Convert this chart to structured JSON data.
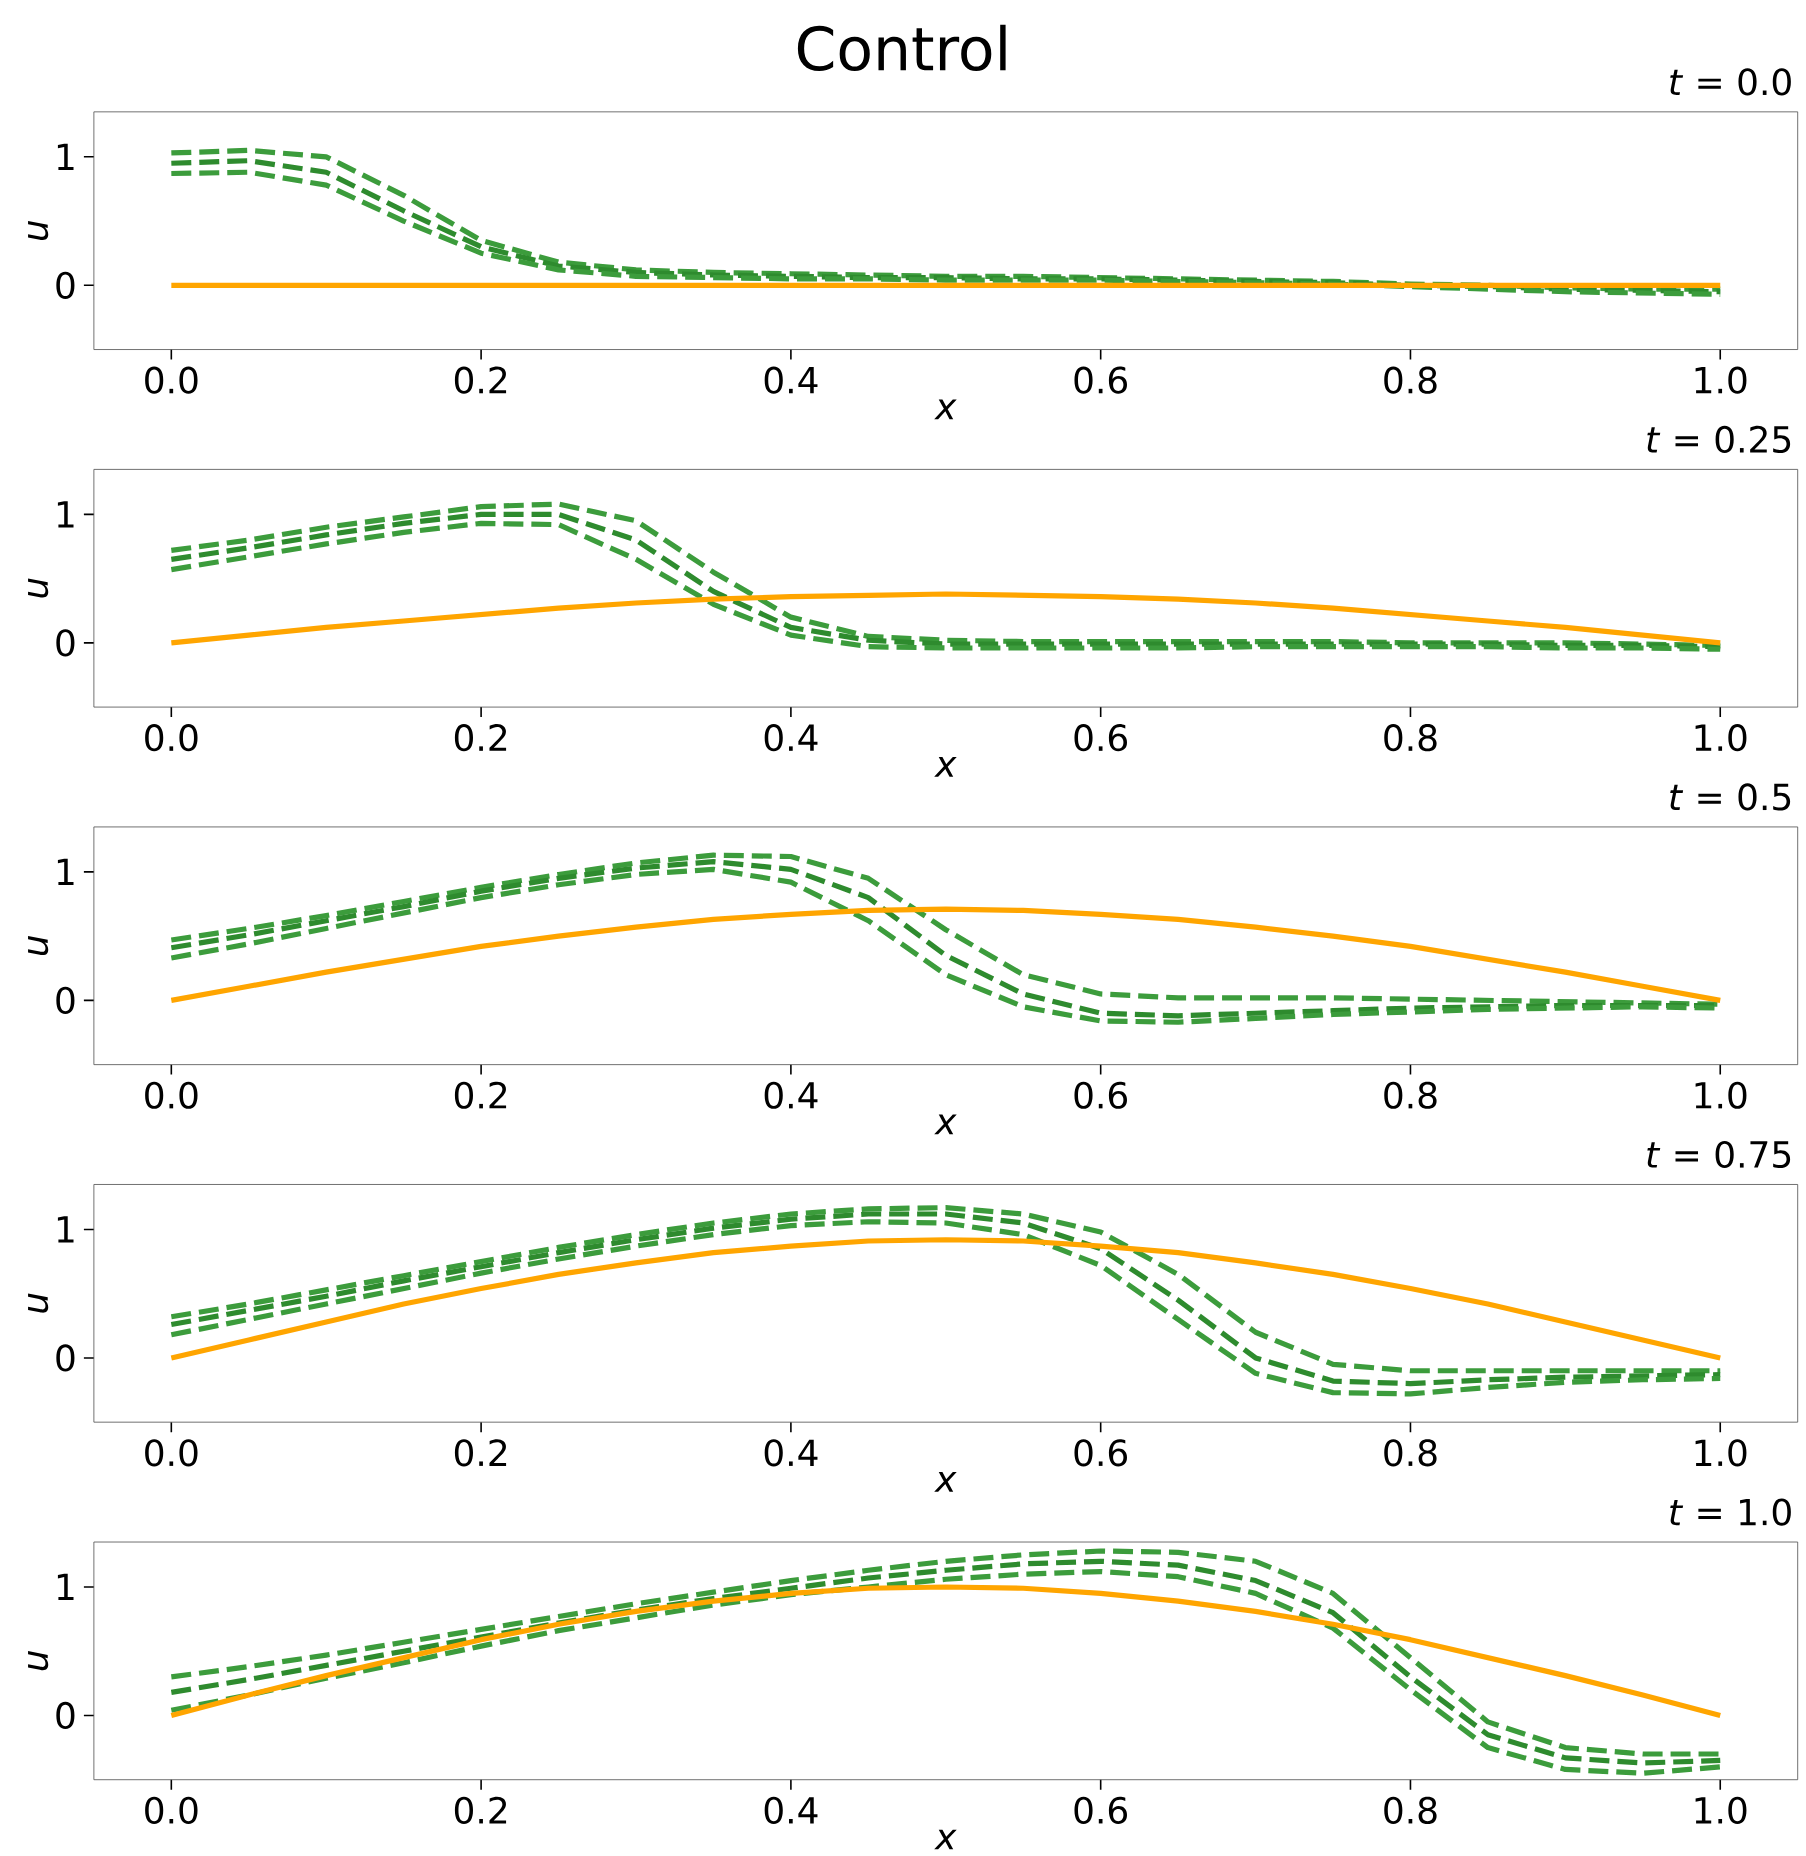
{
  "chart_data": [
    {
      "type": "line",
      "title": "*t* = 0.0",
      "annotations": [
        "Control"
      ],
      "xlabel": "x",
      "ylabel": "u",
      "xlim": [
        -0.05,
        1.05
      ],
      "ylim": [
        -0.5,
        1.35
      ],
      "xticks": [
        {
          "value": 0,
          "label": "0.0"
        },
        {
          "value": 0.2,
          "label": "0.2"
        },
        {
          "value": 0.4,
          "label": "0.4"
        },
        {
          "value": 0.6,
          "label": "0.6"
        },
        {
          "value": 0.8,
          "label": "0.8"
        },
        {
          "value": 1,
          "label": "1.0"
        }
      ],
      "yticks": [
        0,
        1
      ],
      "x": [
        0,
        0.05,
        0.1,
        0.15,
        0.2,
        0.25,
        0.3,
        0.35,
        0.4,
        0.45,
        0.5,
        0.55,
        0.6,
        0.65,
        0.7,
        0.75,
        0.8,
        0.85,
        0.9,
        0.95,
        1.0
      ],
      "series": [
        {
          "color": "#3c9c3c",
          "line_style": "dashed",
          "values": [
            1.03,
            1.05,
            1.0,
            0.7,
            0.35,
            0.18,
            0.12,
            0.1,
            0.09,
            0.08,
            0.07,
            0.07,
            0.06,
            0.05,
            0.04,
            0.03,
            0.01,
            0.0,
            -0.02,
            -0.03,
            -0.03
          ]
        },
        {
          "color": "#2e8b2e",
          "line_style": "dashed",
          "values": [
            0.95,
            0.97,
            0.88,
            0.58,
            0.3,
            0.15,
            0.1,
            0.08,
            0.07,
            0.06,
            0.06,
            0.05,
            0.05,
            0.04,
            0.03,
            0.02,
            0.0,
            -0.01,
            -0.03,
            -0.04,
            -0.05
          ]
        },
        {
          "color": "#3c9c3c",
          "line_style": "dashed",
          "values": [
            0.87,
            0.88,
            0.78,
            0.5,
            0.25,
            0.12,
            0.07,
            0.06,
            0.05,
            0.05,
            0.04,
            0.04,
            0.04,
            0.03,
            0.02,
            0.01,
            -0.01,
            -0.03,
            -0.05,
            -0.06,
            -0.07
          ]
        },
        {
          "color": "#ffa500",
          "line_style": "solid",
          "values": [
            0,
            0,
            0,
            0,
            0,
            0,
            0,
            0,
            0,
            0,
            0,
            0,
            0,
            0,
            0,
            0,
            0,
            0,
            0,
            0,
            0
          ]
        }
      ]
    },
    {
      "type": "line",
      "title": "*t* = 0.25",
      "xlabel": "x",
      "ylabel": "u",
      "xlim": [
        -0.05,
        1.05
      ],
      "ylim": [
        -0.5,
        1.35
      ],
      "xticks": [
        {
          "value": 0,
          "label": "0.0"
        },
        {
          "value": 0.2,
          "label": "0.2"
        },
        {
          "value": 0.4,
          "label": "0.4"
        },
        {
          "value": 0.6,
          "label": "0.6"
        },
        {
          "value": 0.8,
          "label": "0.8"
        },
        {
          "value": 1,
          "label": "1.0"
        }
      ],
      "yticks": [
        0,
        1
      ],
      "x": [
        0,
        0.05,
        0.1,
        0.15,
        0.2,
        0.25,
        0.3,
        0.35,
        0.4,
        0.45,
        0.5,
        0.55,
        0.6,
        0.65,
        0.7,
        0.75,
        0.8,
        0.85,
        0.9,
        0.95,
        1.0
      ],
      "series": [
        {
          "color": "#3c9c3c",
          "line_style": "dashed",
          "values": [
            0.72,
            0.8,
            0.9,
            0.98,
            1.06,
            1.08,
            0.95,
            0.55,
            0.2,
            0.05,
            0.02,
            0.01,
            0.01,
            0.01,
            0.01,
            0.01,
            0.0,
            0.0,
            0.0,
            -0.01,
            -0.02
          ]
        },
        {
          "color": "#2e8b2e",
          "line_style": "dashed",
          "values": [
            0.65,
            0.74,
            0.84,
            0.93,
            1.0,
            1.0,
            0.8,
            0.4,
            0.12,
            0.02,
            -0.01,
            -0.01,
            -0.01,
            -0.01,
            -0.01,
            -0.01,
            -0.01,
            -0.01,
            -0.02,
            -0.02,
            -0.03
          ]
        },
        {
          "color": "#3c9c3c",
          "line_style": "dashed",
          "values": [
            0.57,
            0.67,
            0.77,
            0.86,
            0.93,
            0.92,
            0.65,
            0.3,
            0.06,
            -0.03,
            -0.04,
            -0.04,
            -0.04,
            -0.04,
            -0.03,
            -0.03,
            -0.03,
            -0.03,
            -0.04,
            -0.04,
            -0.05
          ]
        },
        {
          "color": "#ffa500",
          "line_style": "solid",
          "values": [
            0,
            0.06,
            0.12,
            0.17,
            0.22,
            0.27,
            0.31,
            0.34,
            0.36,
            0.37,
            0.38,
            0.37,
            0.36,
            0.34,
            0.31,
            0.27,
            0.22,
            0.17,
            0.12,
            0.06,
            0
          ]
        }
      ]
    },
    {
      "type": "line",
      "title": "*t* = 0.5",
      "xlabel": "x",
      "ylabel": "u",
      "xlim": [
        -0.05,
        1.05
      ],
      "ylim": [
        -0.5,
        1.35
      ],
      "xticks": [
        {
          "value": 0,
          "label": "0.0"
        },
        {
          "value": 0.2,
          "label": "0.2"
        },
        {
          "value": 0.4,
          "label": "0.4"
        },
        {
          "value": 0.6,
          "label": "0.6"
        },
        {
          "value": 0.8,
          "label": "0.8"
        },
        {
          "value": 1,
          "label": "1.0"
        }
      ],
      "yticks": [
        0,
        1
      ],
      "x": [
        0,
        0.05,
        0.1,
        0.15,
        0.2,
        0.25,
        0.3,
        0.35,
        0.4,
        0.45,
        0.5,
        0.55,
        0.6,
        0.65,
        0.7,
        0.75,
        0.8,
        0.85,
        0.9,
        0.95,
        1.0
      ],
      "series": [
        {
          "color": "#3c9c3c",
          "line_style": "dashed",
          "values": [
            0.47,
            0.56,
            0.66,
            0.77,
            0.88,
            0.98,
            1.07,
            1.13,
            1.12,
            0.95,
            0.55,
            0.2,
            0.05,
            0.02,
            0.02,
            0.02,
            0.01,
            0.0,
            -0.01,
            -0.02,
            -0.03
          ]
        },
        {
          "color": "#2e8b2e",
          "line_style": "dashed",
          "values": [
            0.41,
            0.51,
            0.62,
            0.73,
            0.85,
            0.95,
            1.03,
            1.08,
            1.02,
            0.8,
            0.35,
            0.05,
            -0.1,
            -0.12,
            -0.1,
            -0.08,
            -0.06,
            -0.05,
            -0.04,
            -0.04,
            -0.04
          ]
        },
        {
          "color": "#3c9c3c",
          "line_style": "dashed",
          "values": [
            0.33,
            0.44,
            0.56,
            0.68,
            0.8,
            0.9,
            0.98,
            1.02,
            0.92,
            0.62,
            0.2,
            -0.05,
            -0.16,
            -0.17,
            -0.14,
            -0.11,
            -0.09,
            -0.07,
            -0.06,
            -0.05,
            -0.06
          ]
        },
        {
          "color": "#ffa500",
          "line_style": "solid",
          "values": [
            0,
            0.11,
            0.22,
            0.32,
            0.42,
            0.5,
            0.57,
            0.63,
            0.67,
            0.7,
            0.71,
            0.7,
            0.67,
            0.63,
            0.57,
            0.5,
            0.42,
            0.32,
            0.22,
            0.11,
            0
          ]
        }
      ]
    },
    {
      "type": "line",
      "title": "*t* = 0.75",
      "xlabel": "x",
      "ylabel": "u",
      "xlim": [
        -0.05,
        1.05
      ],
      "ylim": [
        -0.5,
        1.35
      ],
      "xticks": [
        {
          "value": 0,
          "label": "0.0"
        },
        {
          "value": 0.2,
          "label": "0.2"
        },
        {
          "value": 0.4,
          "label": "0.4"
        },
        {
          "value": 0.6,
          "label": "0.6"
        },
        {
          "value": 0.8,
          "label": "0.8"
        },
        {
          "value": 1,
          "label": "1.0"
        }
      ],
      "yticks": [
        0,
        1
      ],
      "x": [
        0,
        0.05,
        0.1,
        0.15,
        0.2,
        0.25,
        0.3,
        0.35,
        0.4,
        0.45,
        0.5,
        0.55,
        0.6,
        0.65,
        0.7,
        0.75,
        0.8,
        0.85,
        0.9,
        0.95,
        1.0
      ],
      "series": [
        {
          "color": "#3c9c3c",
          "line_style": "dashed",
          "values": [
            0.32,
            0.42,
            0.53,
            0.64,
            0.75,
            0.86,
            0.96,
            1.05,
            1.12,
            1.16,
            1.17,
            1.12,
            0.98,
            0.65,
            0.2,
            -0.05,
            -0.1,
            -0.1,
            -0.1,
            -0.1,
            -0.1
          ]
        },
        {
          "color": "#2e8b2e",
          "line_style": "dashed",
          "values": [
            0.26,
            0.37,
            0.48,
            0.6,
            0.71,
            0.82,
            0.92,
            1.01,
            1.08,
            1.12,
            1.12,
            1.05,
            0.85,
            0.45,
            0.0,
            -0.18,
            -0.2,
            -0.17,
            -0.15,
            -0.14,
            -0.13
          ]
        },
        {
          "color": "#3c9c3c",
          "line_style": "dashed",
          "values": [
            0.18,
            0.3,
            0.42,
            0.54,
            0.66,
            0.77,
            0.87,
            0.96,
            1.03,
            1.06,
            1.05,
            0.96,
            0.72,
            0.3,
            -0.12,
            -0.27,
            -0.28,
            -0.23,
            -0.19,
            -0.17,
            -0.16
          ]
        },
        {
          "color": "#ffa500",
          "line_style": "solid",
          "values": [
            0,
            0.14,
            0.28,
            0.42,
            0.54,
            0.65,
            0.74,
            0.82,
            0.87,
            0.91,
            0.92,
            0.91,
            0.87,
            0.82,
            0.74,
            0.65,
            0.54,
            0.42,
            0.28,
            0.14,
            0
          ]
        }
      ]
    },
    {
      "type": "line",
      "title": "*t* = 1.0",
      "xlabel": "x",
      "ylabel": "u",
      "xlim": [
        -0.05,
        1.05
      ],
      "ylim": [
        -0.5,
        1.35
      ],
      "xticks": [
        {
          "value": 0,
          "label": "0.0"
        },
        {
          "value": 0.2,
          "label": "0.2"
        },
        {
          "value": 0.4,
          "label": "0.4"
        },
        {
          "value": 0.6,
          "label": "0.6"
        },
        {
          "value": 0.8,
          "label": "0.8"
        },
        {
          "value": 1,
          "label": "1.0"
        }
      ],
      "yticks": [
        0,
        1
      ],
      "x": [
        0,
        0.05,
        0.1,
        0.15,
        0.2,
        0.25,
        0.3,
        0.35,
        0.4,
        0.45,
        0.5,
        0.55,
        0.6,
        0.65,
        0.7,
        0.75,
        0.8,
        0.85,
        0.9,
        0.95,
        1.0
      ],
      "series": [
        {
          "color": "#3c9c3c",
          "line_style": "dashed",
          "values": [
            0.3,
            0.38,
            0.47,
            0.57,
            0.67,
            0.77,
            0.87,
            0.96,
            1.05,
            1.13,
            1.2,
            1.25,
            1.28,
            1.27,
            1.2,
            0.95,
            0.45,
            -0.05,
            -0.25,
            -0.3,
            -0.3
          ]
        },
        {
          "color": "#2e8b2e",
          "line_style": "dashed",
          "values": [
            0.18,
            0.28,
            0.39,
            0.5,
            0.61,
            0.72,
            0.82,
            0.91,
            0.99,
            1.07,
            1.13,
            1.18,
            1.2,
            1.17,
            1.05,
            0.8,
            0.3,
            -0.15,
            -0.33,
            -0.37,
            -0.35
          ]
        },
        {
          "color": "#3c9c3c",
          "line_style": "dashed",
          "values": [
            0.04,
            0.16,
            0.29,
            0.41,
            0.54,
            0.66,
            0.76,
            0.86,
            0.94,
            1.0,
            1.06,
            1.1,
            1.12,
            1.08,
            0.95,
            0.68,
            0.2,
            -0.25,
            -0.42,
            -0.45,
            -0.4
          ]
        },
        {
          "color": "#ffa500",
          "line_style": "solid",
          "values": [
            0,
            0.16,
            0.31,
            0.45,
            0.59,
            0.71,
            0.81,
            0.89,
            0.95,
            0.99,
            1.0,
            0.99,
            0.95,
            0.89,
            0.81,
            0.71,
            0.59,
            0.45,
            0.31,
            0.16,
            0
          ]
        }
      ]
    }
  ]
}
